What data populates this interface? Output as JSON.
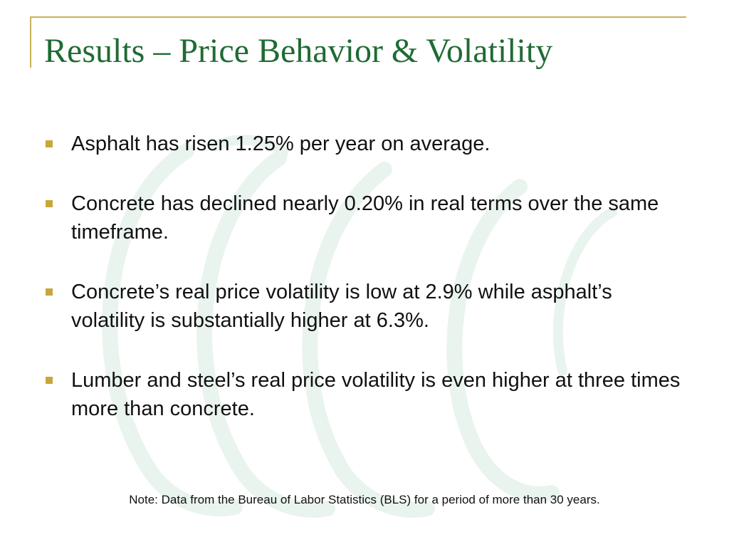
{
  "slide": {
    "title": "Results – Price Behavior & Volatility",
    "bullets": [
      {
        "text": "Asphalt has risen 1.25% per year on average."
      },
      {
        "text": "Concrete has declined nearly 0.20% in real terms over the same timeframe."
      },
      {
        "text": "Concrete’s real price volatility is low at 2.9% while asphalt’s volatility is substantially higher at 6.3%."
      },
      {
        "text": "Lumber and steel’s real price volatility is even higher at three times more than concrete."
      }
    ],
    "note": "Note: Data from the Bureau of Labor Statistics (BLS) for a period of more than 30 years."
  },
  "colors": {
    "title": "#1f6b34",
    "frame": "#c9b25a",
    "bullet_marker": "#c9a63a",
    "watermark": "#eaf4ee"
  }
}
